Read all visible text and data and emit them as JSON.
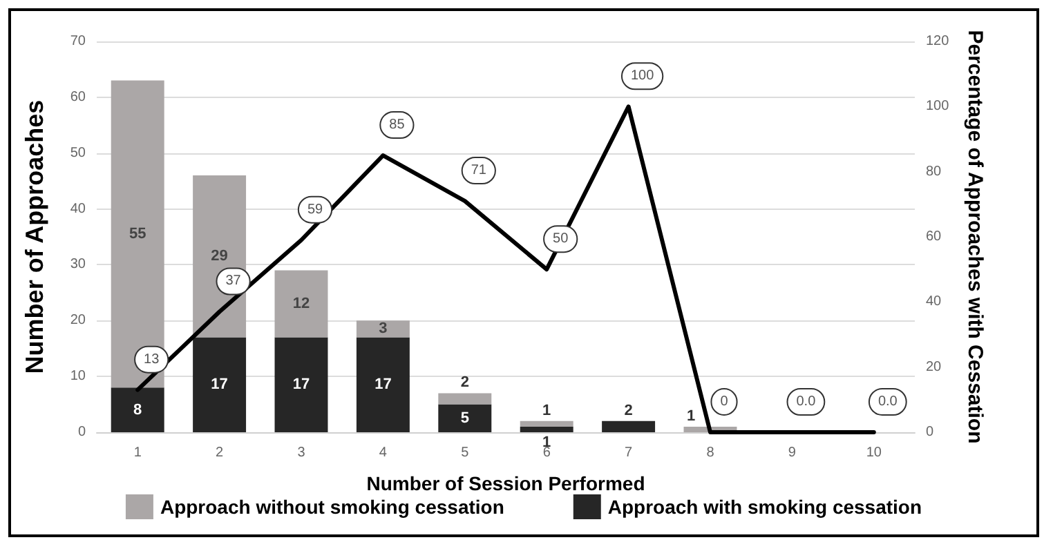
{
  "chart_data": {
    "type": "bar",
    "stacked": true,
    "categories": [
      "1",
      "2",
      "3",
      "4",
      "5",
      "6",
      "7",
      "8",
      "9",
      "10"
    ],
    "xlabel": "Number of Session Performed",
    "ylabel": "Number of Approaches",
    "y2label": "Percentage of Approaches with Cessation",
    "ylim": [
      0,
      70
    ],
    "yticks": [
      0,
      10,
      20,
      30,
      40,
      50,
      60,
      70
    ],
    "y2lim": [
      0,
      120
    ],
    "y2ticks": [
      0,
      20,
      40,
      60,
      80,
      100,
      120
    ],
    "grid": "y",
    "legend": "bottom",
    "series": [
      {
        "name": "Approach with smoking cessation",
        "color": "#262626",
        "values": [
          8,
          17,
          17,
          17,
          5,
          1,
          2,
          0,
          0,
          0
        ],
        "value_labels": [
          "8",
          "17",
          "17",
          "17",
          "5",
          "1",
          "2",
          null,
          null,
          null
        ]
      },
      {
        "name": "Approach without smoking cessation",
        "color": "#aba7a7",
        "values": [
          55,
          29,
          12,
          3,
          2,
          1,
          0,
          1,
          0,
          0
        ],
        "value_labels": [
          "55",
          "29",
          "12",
          "3",
          "2",
          "1",
          null,
          "1",
          null,
          null
        ]
      },
      {
        "type": "line",
        "axis": "y2",
        "color": "#000000",
        "marker": "none",
        "line_style": "solid",
        "values": [
          13,
          37,
          59,
          85,
          71,
          50,
          100,
          0,
          0,
          0
        ],
        "value_labels": [
          "13",
          "37",
          "59",
          "85",
          "71",
          "50",
          "100",
          "0",
          "0.0",
          "0.0"
        ]
      }
    ]
  }
}
